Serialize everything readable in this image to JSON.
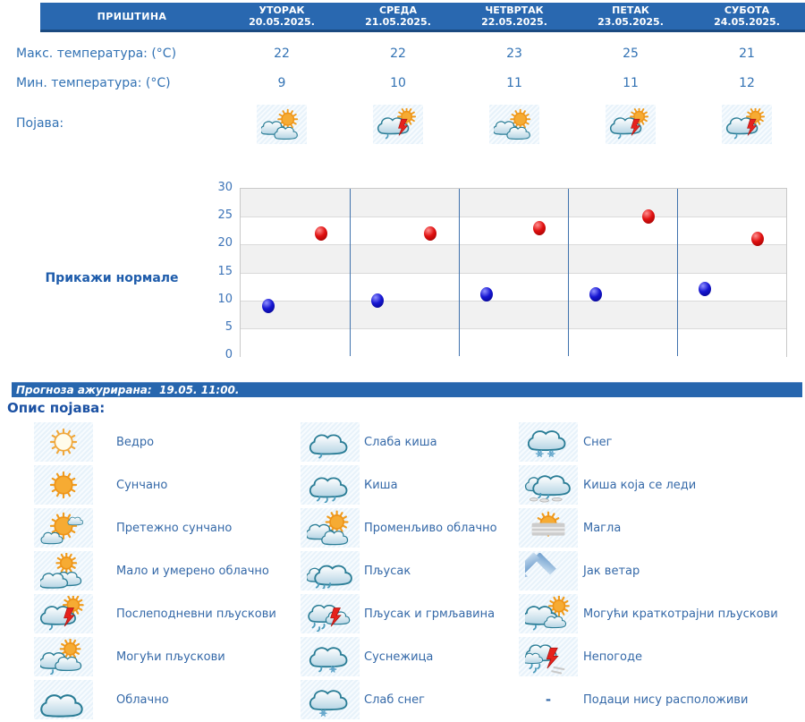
{
  "colors": {
    "header_bg": "#2968b0",
    "header_border": "#1b4a80",
    "table_text": "#3272b4",
    "normals_link": "#1e5cab",
    "update_bar_bg": "#2766ae",
    "legend_text": "#3569a8",
    "max_dot": "#cc0000",
    "min_dot": "#1414d2",
    "day_separator": "#3f72ad"
  },
  "table": {
    "location": "ПРИШТИНА",
    "days": [
      {
        "name": "УТОРАК",
        "date": "20.05.2025."
      },
      {
        "name": "СРЕДА",
        "date": "21.05.2025."
      },
      {
        "name": "ЧЕТВРТАК",
        "date": "22.05.2025."
      },
      {
        "name": "ПЕТАК",
        "date": "23.05.2025."
      },
      {
        "name": "СУБОТА",
        "date": "24.05.2025."
      }
    ],
    "max_label": "Макс. температура: (°C)",
    "min_label": "Мин. температура: (°C)",
    "phenomenon_label": "Појава:",
    "max_temps": [
      "22",
      "22",
      "23",
      "25",
      "21"
    ],
    "min_temps": [
      "9",
      "10",
      "11",
      "11",
      "12"
    ],
    "phenomenon_icons": [
      "variable-cloudy-icon",
      "afternoon-showers-icon",
      "variable-cloudy-icon",
      "afternoon-showers-icon",
      "afternoon-showers-icon"
    ]
  },
  "chart": {
    "normals_label": "Прикажи нормале"
  },
  "chart_data": {
    "type": "scatter",
    "categories": [
      "УТОРАК 20.05.2025.",
      "СРЕДА 21.05.2025.",
      "ЧЕТВРТАК 22.05.2025.",
      "ПЕТАК 23.05.2025.",
      "СУБОТА 24.05.2025."
    ],
    "series": [
      {
        "name": "Макс. температура (°C)",
        "color": "#cc0000",
        "values": [
          22,
          22,
          23,
          25,
          21
        ],
        "x_offset_frac": 0.74
      },
      {
        "name": "Мин. температура (°C)",
        "color": "#1414d2",
        "values": [
          9,
          10,
          11,
          11,
          12
        ],
        "x_offset_frac": 0.25
      }
    ],
    "ylim": [
      0,
      30
    ],
    "yticks": [
      0,
      5,
      10,
      15,
      20,
      25,
      30
    ],
    "grid": "horizontal gridlines every 5 with alternating gray bands, blue vertical separators between days",
    "legend_position": "none",
    "title": ""
  },
  "update_bar": {
    "text": "Прогноза ажурирана:  19.05. 11:00."
  },
  "legend": {
    "title": "Опис појава:",
    "columns": [
      {
        "items": [
          {
            "icon": "clear-icon",
            "label": "Ведро"
          },
          {
            "icon": "sunny-icon",
            "label": "Сунчано"
          },
          {
            "icon": "mostly-sunny-icon",
            "label": "Претежно сунчано"
          },
          {
            "icon": "partly-cloudy-icon",
            "label": "Мало и умерено облачно"
          },
          {
            "icon": "afternoon-showers-icon",
            "label": "Послеподневни пљускови"
          },
          {
            "icon": "possible-showers-icon",
            "label": "Могући пљускови"
          },
          {
            "icon": "cloudy-icon",
            "label": "Облачно"
          }
        ]
      },
      {
        "items": [
          {
            "icon": "light-rain-icon",
            "label": "Слаба киша"
          },
          {
            "icon": "rain-icon",
            "label": "Киша"
          },
          {
            "icon": "variable-cloudy-icon",
            "label": "Променљиво облачно"
          },
          {
            "icon": "shower-icon",
            "label": "Пљусак"
          },
          {
            "icon": "thunder-shower-icon",
            "label": "Пљусак и грмљавина"
          },
          {
            "icon": "sleet-icon",
            "label": "Суснежица"
          },
          {
            "icon": "light-snow-icon",
            "label": "Слаб снег"
          }
        ]
      },
      {
        "items": [
          {
            "icon": "snow-icon",
            "label": "Снег"
          },
          {
            "icon": "freezing-rain-icon",
            "label": "Киша која се леди"
          },
          {
            "icon": "fog-icon",
            "label": "Магла"
          },
          {
            "icon": "strong-wind-icon",
            "label": "Јак ветар"
          },
          {
            "icon": "possible-brief-showers-icon",
            "label": "Могући краткотрајни пљускови"
          },
          {
            "icon": "severe-weather-icon",
            "label": "Непогоде"
          },
          {
            "icon": "no-data",
            "label": "Подаци нису расположиви",
            "dash": "-"
          }
        ]
      }
    ]
  }
}
